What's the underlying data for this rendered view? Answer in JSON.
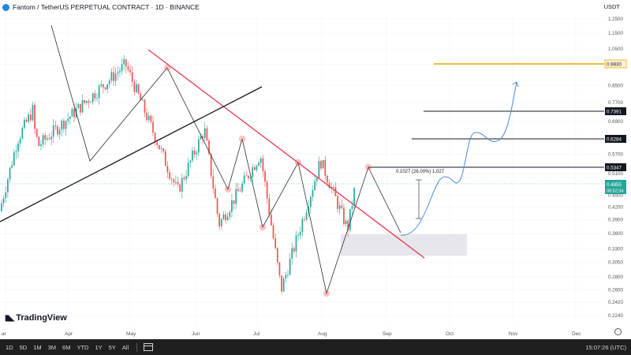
{
  "header": {
    "title": "Fantom / TetherUS PERPETUAL CONTRACT · 1D · BINANCE",
    "currency": "USDT",
    "logo_icon": "fantom-logo-icon"
  },
  "bottom_bar": {
    "timeframes": [
      "1D",
      "5D",
      "1M",
      "3M",
      "6M",
      "YTD",
      "1Y",
      "5Y",
      "All"
    ],
    "clock": "15:07:26 (UTC)"
  },
  "brand": "TradingView",
  "colors": {
    "up": "#26a69a",
    "down": "#ef5350",
    "trendline_red": "#e53950",
    "trendline_black": "#131722",
    "orange": "#f0a500",
    "projection": "#4f88d8",
    "highlight_box": "#e6e6ec",
    "last_price": "#26a69a"
  },
  "chart_data": {
    "type": "candlestick",
    "symbol": "FTMUSDT.P",
    "interval": "1D",
    "y_scale": "log",
    "y_ticks": [
      "1.2500",
      "1.1500",
      "1.0500",
      "0.9600",
      "0.8500",
      "0.7700",
      "0.6900",
      "0.5700",
      "0.5100",
      "0.4500",
      "0.4200",
      "0.3900",
      "0.3600",
      "0.3300",
      "0.3050",
      "0.2800",
      "0.2600",
      "0.2420",
      "0.2240"
    ],
    "x_ticks": [
      "ar",
      "Apr",
      "May",
      "Jun",
      "Jul",
      "Aug",
      "Sep",
      "Oct",
      "Nov",
      "Dec"
    ],
    "price_labels": [
      {
        "value": "0.9830",
        "kind": "orange"
      },
      {
        "value": "0.7391",
        "kind": "dark"
      },
      {
        "value": "0.6284",
        "kind": "dark"
      },
      {
        "value": "0.5347",
        "kind": "dark"
      }
    ],
    "last_price": {
      "value": "0.4855",
      "countdown": "08:52:34"
    },
    "measure_annotation": "0.1027 (26.00%) 1,027",
    "swing_points": [
      {
        "date": "Mar 26",
        "price": 1.25
      },
      {
        "date": "Apr 10",
        "price": 0.6
      },
      {
        "date": "May 22",
        "price": 0.96
      },
      {
        "date": "Jun 16",
        "price": 0.46
      },
      {
        "date": "Jun 29",
        "price": 0.66
      },
      {
        "date": "Jul 06",
        "price": 0.38
      },
      {
        "date": "Jul 26",
        "price": 0.57
      },
      {
        "date": "Aug 05",
        "price": 0.26
      },
      {
        "date": "Aug 24",
        "price": 0.55
      },
      {
        "date": "Sep 06",
        "price": 0.37
      },
      {
        "date": "Sep 10",
        "price": 0.485
      }
    ]
  }
}
